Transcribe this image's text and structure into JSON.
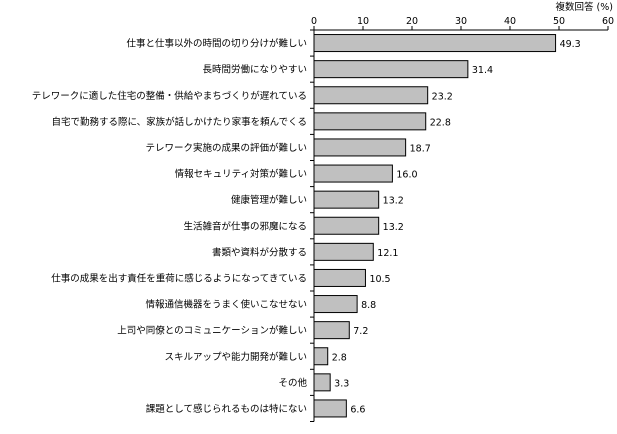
{
  "chart_data": {
    "type": "bar",
    "orientation": "horizontal",
    "unit_label": "複数回答 (%)",
    "xlim": [
      0,
      60
    ],
    "x_ticks": [
      "0",
      "10",
      "20",
      "30",
      "40",
      "50",
      "60"
    ],
    "grid": false,
    "bar_color": "#c0c0c0",
    "bar_edge_color": "#000000",
    "categories": [
      "仕事と仕事以外の時間の切り分けが難しい",
      "長時間労働になりやすい",
      "テレワークに適した住宅の整備・供給やまちづくりが遅れている",
      "自宅で勤務する際に、家族が話しかけたり家事を頼んでくる",
      "テレワーク実施の成果の評価が難しい",
      "情報セキュリティ対策が難しい",
      "健康管理が難しい",
      "生活雑音が仕事の邪魔になる",
      "書類や資料が分散する",
      "仕事の成果を出す責任を重荷に感じるようになってきている",
      "情報通信機器をうまく使いこなせない",
      "上司や同僚とのコミュニケーションが難しい",
      "スキルアップや能力開発が難しい",
      "その他",
      "課題として感じられるものは特にない"
    ],
    "values": [
      49.3,
      31.4,
      23.2,
      22.8,
      18.7,
      16.0,
      13.2,
      13.2,
      12.1,
      10.5,
      8.8,
      7.2,
      2.8,
      3.3,
      6.6
    ],
    "value_labels": [
      "49.3",
      "31.4",
      "23.2",
      "22.8",
      "18.7",
      "16.0",
      "13.2",
      "13.2",
      "12.1",
      "10.5",
      "8.8",
      "7.2",
      "2.8",
      "3.3",
      "6.6"
    ]
  }
}
